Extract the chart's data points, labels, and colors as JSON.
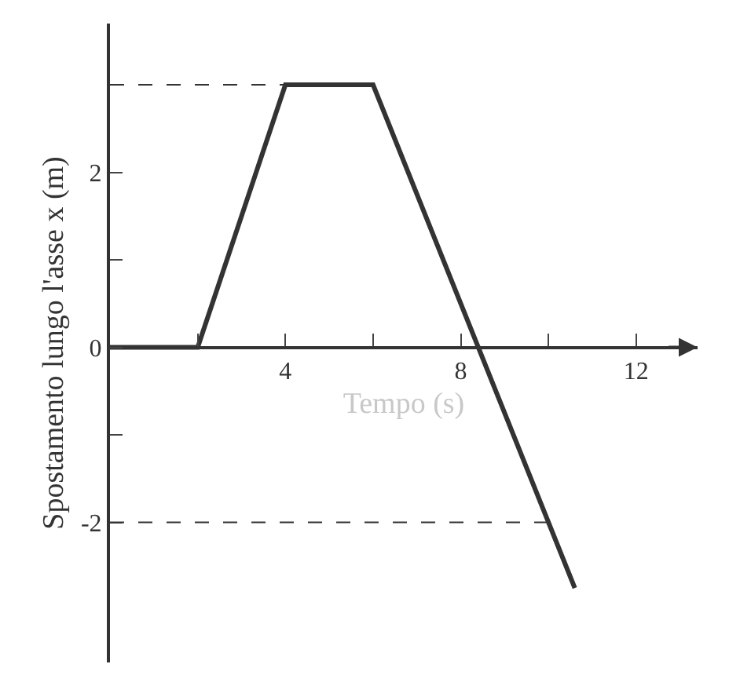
{
  "chart_data": {
    "type": "line",
    "xlabel": "Tempo (s)",
    "ylabel": "Spostamento lungo l'asse x (m)",
    "x": [
      0,
      2,
      4,
      6,
      10.6
    ],
    "series": [
      {
        "color": "#333333",
        "values": [
          0,
          0,
          3,
          3,
          -2.75
        ]
      }
    ],
    "xlim": [
      0,
      13.4
    ],
    "ylim": [
      -3.6,
      3.7
    ],
    "xticks": [
      {
        "value": 2,
        "label": null
      },
      4,
      {
        "value": 6,
        "label": null
      },
      8,
      {
        "value": 10,
        "label": null
      },
      12
    ],
    "yticks": [
      -2,
      {
        "value": -1,
        "label": null
      },
      0,
      {
        "value": 1,
        "label": null
      },
      2,
      {
        "value": 3,
        "label": null
      }
    ],
    "ref_lines": [
      {
        "axis": "y",
        "value": 3,
        "line_style": "dashed"
      },
      {
        "axis": "y",
        "value": -2,
        "line_style": "dashed"
      }
    ],
    "marker": "none",
    "line_style": "solid"
  }
}
